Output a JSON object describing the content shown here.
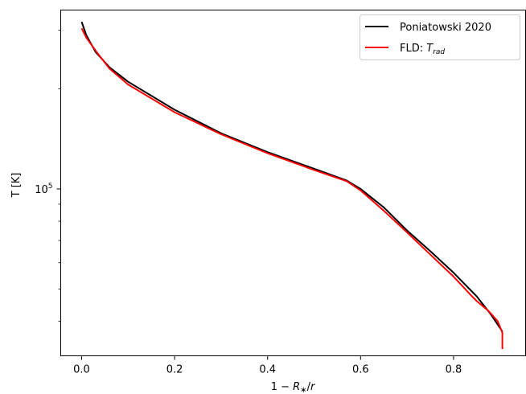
{
  "chart_data": {
    "type": "line",
    "xlabel": "1 − R*/r",
    "ylabel": "T [K]",
    "y_scale": "log",
    "xlim": [
      -0.045,
      0.955
    ],
    "ylim": [
      31500,
      345000
    ],
    "x_ticks": [
      0.0,
      0.2,
      0.4,
      0.6,
      0.8
    ],
    "x_tick_labels": [
      "0.0",
      "0.2",
      "0.4",
      "0.6",
      "0.8"
    ],
    "y_ticks": [
      100000
    ],
    "y_minor_ticks": [
      40000,
      50000,
      60000,
      70000,
      80000,
      90000,
      200000,
      300000
    ],
    "legend_position": "upper-right",
    "grid": false,
    "series": [
      {
        "name": "Poniatowski 2020",
        "color": "#000000",
        "x": [
          0.0,
          0.01,
          0.03,
          0.06,
          0.1,
          0.2,
          0.3,
          0.4,
          0.5,
          0.57,
          0.6,
          0.65,
          0.7,
          0.75,
          0.8,
          0.85,
          0.88,
          0.905
        ],
        "y": [
          318000,
          290000,
          258000,
          232000,
          210000,
          173000,
          147000,
          129000,
          115000,
          106000,
          100000,
          88000,
          75000,
          65000,
          56000,
          47500,
          42000,
          37300
        ]
      },
      {
        "name": "FLD: T_rad",
        "label_prefix": "FLD: ",
        "label_math": "T",
        "label_sub": "rad",
        "color": "#ff0000",
        "x": [
          0.0,
          0.01,
          0.035,
          0.06,
          0.1,
          0.2,
          0.3,
          0.4,
          0.5,
          0.57,
          0.6,
          0.65,
          0.7,
          0.75,
          0.8,
          0.84,
          0.85,
          0.875,
          0.895,
          0.905,
          0.905
        ],
        "y": [
          304000,
          285000,
          255000,
          230000,
          206000,
          170000,
          146000,
          128000,
          114000,
          105500,
          99000,
          86000,
          74000,
          63500,
          54500,
          47500,
          46000,
          43000,
          40000,
          37000,
          33000
        ]
      }
    ]
  }
}
